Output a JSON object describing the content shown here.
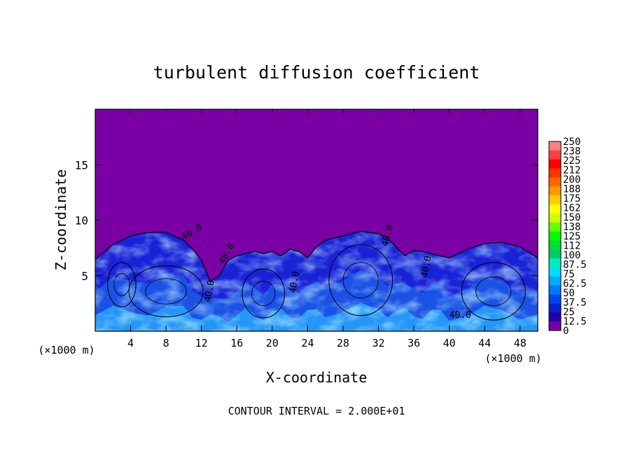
{
  "chart_data": {
    "type": "heatmap",
    "title": "turbulent diffusion coefficient",
    "xlabel": "X-coordinate",
    "ylabel": "Z-coordinate",
    "x_unit": "(×1000 m)",
    "y_unit": "(×1000 m)",
    "footer": "CONTOUR INTERVAL = 2.000E+01",
    "xlim": [
      0,
      50
    ],
    "ylim": [
      0,
      20
    ],
    "x_ticks": [
      4,
      8,
      12,
      16,
      20,
      24,
      28,
      32,
      36,
      40,
      44,
      48
    ],
    "y_ticks": [
      5,
      10,
      15
    ],
    "colorbar": {
      "labels": [
        "250",
        "238",
        "225",
        "212",
        "200",
        "188",
        "175",
        "162",
        "150",
        "138",
        "125",
        "112",
        "100",
        "87.5",
        "75",
        "62.5",
        "50",
        "37.5",
        "25",
        "12.5",
        "0"
      ],
      "colors": [
        "#ff8080",
        "#ff4040",
        "#ff0000",
        "#ff3300",
        "#ff6600",
        "#ff9900",
        "#ffcc00",
        "#ffff00",
        "#ccff00",
        "#66ff00",
        "#00ff00",
        "#00dd33",
        "#00cc66",
        "#00eebb",
        "#00ddff",
        "#00aaff",
        "#0077ff",
        "#0044ee",
        "#0022cc",
        "#2200aa",
        "#7700aa"
      ]
    },
    "background_value_color": "#7a00a6",
    "contour_labels": [
      "40.0",
      "40.0",
      "40.0",
      "40.0",
      "40.0",
      "40.0",
      "40.0"
    ],
    "turbulent_layer": [
      [
        0,
        6.5
      ],
      [
        2,
        7.8
      ],
      [
        4,
        8.6
      ],
      [
        6,
        8.9
      ],
      [
        8,
        8.9
      ],
      [
        10,
        8.2
      ],
      [
        11,
        7.4
      ],
      [
        12,
        6.4
      ],
      [
        13,
        4.5
      ],
      [
        14,
        5.0
      ],
      [
        15,
        6.4
      ],
      [
        16,
        6.8
      ],
      [
        17,
        7.0
      ],
      [
        18,
        7.2
      ],
      [
        19,
        7.0
      ],
      [
        20,
        7.2
      ],
      [
        21,
        6.8
      ],
      [
        22,
        7.4
      ],
      [
        23,
        7.2
      ],
      [
        24,
        6.6
      ],
      [
        25,
        7.6
      ],
      [
        26,
        8.2
      ],
      [
        28,
        8.6
      ],
      [
        30,
        9.0
      ],
      [
        32,
        8.8
      ],
      [
        33,
        8.4
      ],
      [
        34,
        7.6
      ],
      [
        35,
        6.8
      ],
      [
        36,
        7.3
      ],
      [
        37,
        7.2
      ],
      [
        38,
        7.0
      ],
      [
        39,
        6.8
      ],
      [
        40,
        6.6
      ],
      [
        42,
        7.4
      ],
      [
        44,
        7.9
      ],
      [
        46,
        8.0
      ],
      [
        48,
        7.6
      ],
      [
        50,
        6.6
      ]
    ]
  }
}
